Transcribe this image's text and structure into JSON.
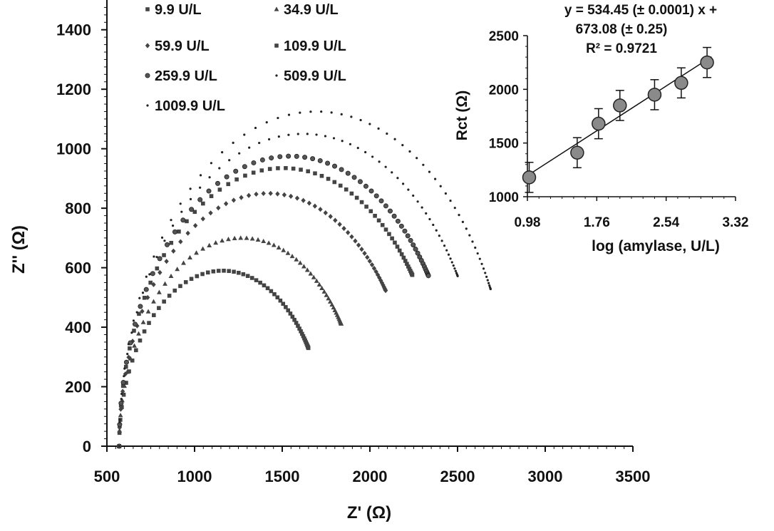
{
  "chart_data": [
    {
      "type": "scatter",
      "xlabel": "Z' (Ω)",
      "ylabel": "Z'' (Ω)",
      "xlim": [
        500,
        3500
      ],
      "ylim": [
        0,
        1500
      ],
      "x_ticks": [
        "500",
        "1000",
        "1500",
        "2000",
        "2500",
        "3000",
        "3500"
      ],
      "y_ticks": [
        "0",
        "200",
        "400",
        "600",
        "800",
        "1000",
        "1200",
        "1400"
      ],
      "legend_position": "top-left",
      "series": [
        {
          "name": "9.9 U/L",
          "marker": "square",
          "r0": 570,
          "diameter": 1180,
          "end_angle_deg": 146
        },
        {
          "name": "34.9 U/L",
          "marker": "triangle",
          "r0": 570,
          "diameter": 1400,
          "end_angle_deg": 144
        },
        {
          "name": "59.9 U/L",
          "marker": "diamond",
          "r0": 570,
          "diameter": 1700,
          "end_angle_deg": 142
        },
        {
          "name": "109.9 U/L",
          "marker": "square",
          "r0": 570,
          "diameter": 1870,
          "end_angle_deg": 142
        },
        {
          "name": "259.9 U/L",
          "marker": "circle",
          "r0": 570,
          "diameter": 1950,
          "end_angle_deg": 144
        },
        {
          "name": "509.9 U/L",
          "marker": "dot",
          "r0": 570,
          "diameter": 2100,
          "end_angle_deg": 147
        },
        {
          "name": "1009.9 U/L",
          "marker": "dot",
          "r0": 570,
          "diameter": 2250,
          "end_angle_deg": 152
        }
      ]
    },
    {
      "type": "scatter",
      "position": "top-right inset",
      "xlabel": "log (amylase, U/L)",
      "ylabel": "Rct (Ω)",
      "xlim": [
        0.98,
        3.32
      ],
      "ylim": [
        1000,
        2500
      ],
      "x_ticks": [
        "0.98",
        "1.76",
        "2.54",
        "3.32"
      ],
      "y_ticks": [
        "1000",
        "1500",
        "2000",
        "2500"
      ],
      "annotation": [
        "y = 534.45 (± 0.0001) x +",
        "673.08 (± 0.25)",
        "R² = 0.9721"
      ],
      "points": [
        {
          "x": 1.0,
          "y": 1180,
          "err": 140
        },
        {
          "x": 1.54,
          "y": 1410,
          "err": 140
        },
        {
          "x": 1.78,
          "y": 1680,
          "err": 140
        },
        {
          "x": 2.02,
          "y": 1850,
          "err": 140
        },
        {
          "x": 2.41,
          "y": 1950,
          "err": 140
        },
        {
          "x": 2.71,
          "y": 2060,
          "err": 140
        },
        {
          "x": 3.0,
          "y": 2250,
          "err": 140
        }
      ],
      "fit": {
        "slope": 534.45,
        "intercept": 673.08
      }
    }
  ]
}
